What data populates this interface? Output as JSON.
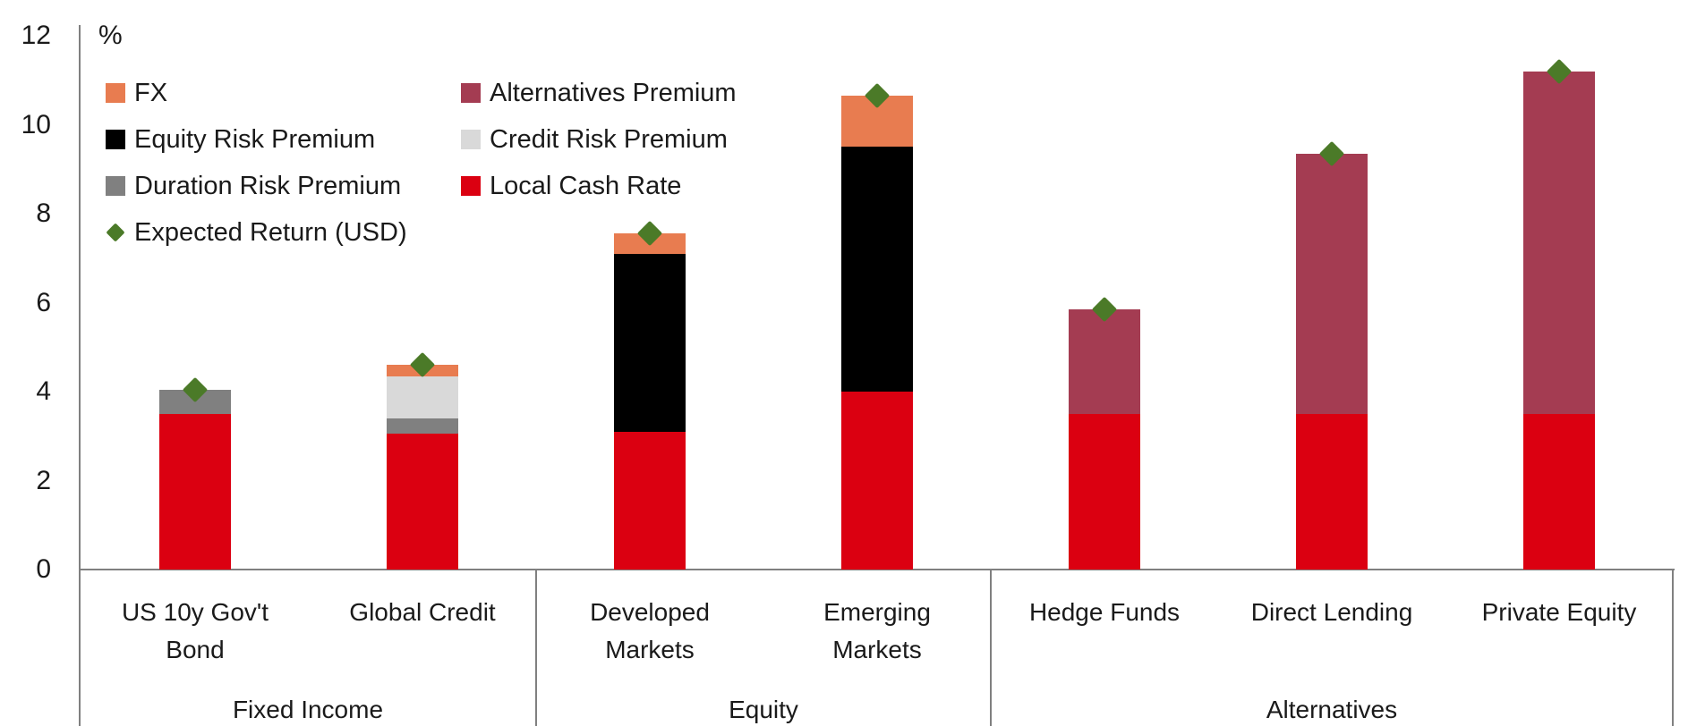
{
  "chart_data": {
    "type": "bar",
    "stacked": true,
    "title": "",
    "ylabel": "%",
    "ylim": [
      0,
      12
    ],
    "yticks": [
      0,
      2,
      4,
      6,
      8,
      10,
      12
    ],
    "grid": false,
    "legend_position": "top-left-two-columns",
    "categories": [
      "US 10y Gov't Bond",
      "Global Credit",
      "Developed Markets",
      "Emerging Markets",
      "Hedge Funds",
      "Direct Lending",
      "Private Equity"
    ],
    "category_display_lines": [
      [
        "US 10y Gov't",
        "Bond"
      ],
      [
        "Global Credit"
      ],
      [
        "Developed",
        "Markets"
      ],
      [
        "Emerging",
        "Markets"
      ],
      [
        "Hedge Funds"
      ],
      [
        "Direct Lending"
      ],
      [
        "Private Equity"
      ]
    ],
    "groups": [
      {
        "label": "Fixed Income",
        "category_indexes": [
          0,
          1
        ]
      },
      {
        "label": "Equity",
        "category_indexes": [
          2,
          3
        ]
      },
      {
        "label": "Alternatives",
        "category_indexes": [
          4,
          5,
          6
        ]
      }
    ],
    "series": [
      {
        "name": "Local Cash Rate",
        "color": "#DB0011",
        "values": [
          3.5,
          3.05,
          3.1,
          4.0,
          3.5,
          3.5,
          3.5
        ]
      },
      {
        "name": "Duration Risk Premium",
        "color": "#808080",
        "values": [
          0.55,
          0.35,
          0,
          0,
          0,
          0,
          0
        ]
      },
      {
        "name": "Credit Risk Premium",
        "color": "#D9D9D9",
        "values": [
          0,
          0.95,
          0,
          0,
          0,
          0,
          0
        ]
      },
      {
        "name": "Equity Risk Premium",
        "color": "#000000",
        "values": [
          0,
          0,
          4.0,
          5.5,
          0,
          0,
          0
        ]
      },
      {
        "name": "Alternatives Premium",
        "color": "#A43C52",
        "values": [
          0,
          0,
          0,
          0,
          2.35,
          5.85,
          7.7
        ]
      },
      {
        "name": "FX",
        "color": "#E87C50",
        "values": [
          0,
          0.25,
          0.45,
          1.15,
          0,
          0,
          0
        ]
      }
    ],
    "marker_series": {
      "name": "Expected Return (USD)",
      "shape": "diamond",
      "color": "#4B7A28",
      "values": [
        4.05,
        4.6,
        7.55,
        10.65,
        5.85,
        9.35,
        11.2
      ]
    },
    "legend": {
      "columns": [
        [
          {
            "label": "FX",
            "swatch": "square",
            "color": "#E87C50"
          },
          {
            "label": "Equity Risk Premium",
            "swatch": "square",
            "color": "#000000"
          },
          {
            "label": "Duration Risk Premium",
            "swatch": "square",
            "color": "#808080"
          },
          {
            "label": "Expected Return (USD)",
            "swatch": "diamond",
            "color": "#4B7A28"
          }
        ],
        [
          {
            "label": "Alternatives Premium",
            "swatch": "square",
            "color": "#A43C52"
          },
          {
            "label": "Credit Risk Premium",
            "swatch": "square",
            "color": "#D9D9D9"
          },
          {
            "label": "Local Cash Rate",
            "swatch": "square",
            "color": "#DB0011"
          }
        ]
      ]
    },
    "colors": {
      "axis": "#808080",
      "text": "#1a1a1a",
      "background": "#ffffff"
    }
  }
}
